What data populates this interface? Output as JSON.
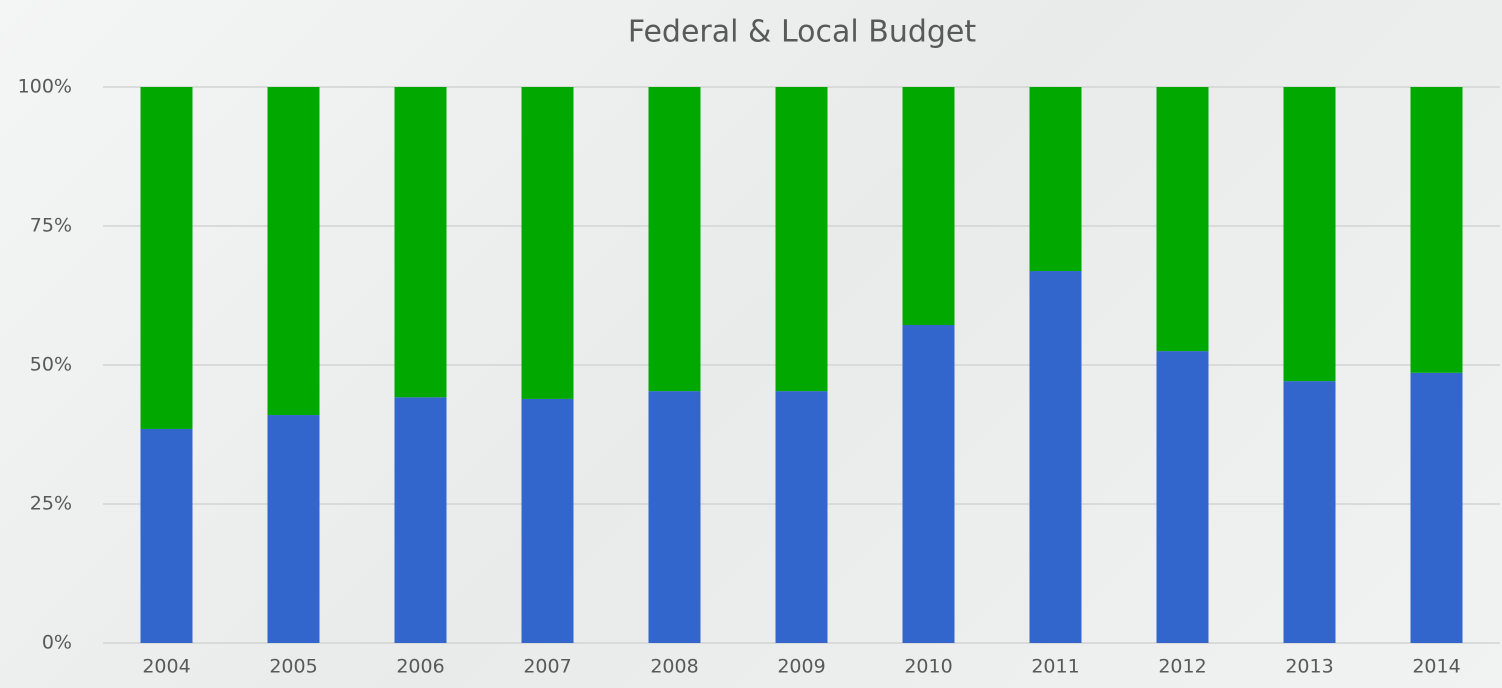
{
  "chart_data": {
    "type": "stacked_bar",
    "title": "Federal & Local Budget",
    "categories": [
      "2004",
      "2005",
      "2006",
      "2007",
      "2008",
      "2009",
      "2010",
      "2011",
      "2012",
      "2013",
      "2014"
    ],
    "series": [
      {
        "color": "#3366cc",
        "values": [
          38.5,
          41,
          44.2,
          43.9,
          45.3,
          45.3,
          57.2,
          66.9,
          52.5,
          47.1,
          48.6
        ]
      },
      {
        "color": "#00a800",
        "values": [
          61.5,
          59,
          55.8,
          56.1,
          54.7,
          54.7,
          42.8,
          33.1,
          47.5,
          52.9,
          51.4
        ]
      }
    ],
    "ylim": [
      0,
      100
    ],
    "yticks": [
      {
        "value": 0,
        "label": "0%"
      },
      {
        "value": 25,
        "label": "25%"
      },
      {
        "value": 50,
        "label": "50%"
      },
      {
        "value": 75,
        "label": "75%"
      },
      {
        "value": 100,
        "label": "100%"
      }
    ],
    "grid": true
  }
}
